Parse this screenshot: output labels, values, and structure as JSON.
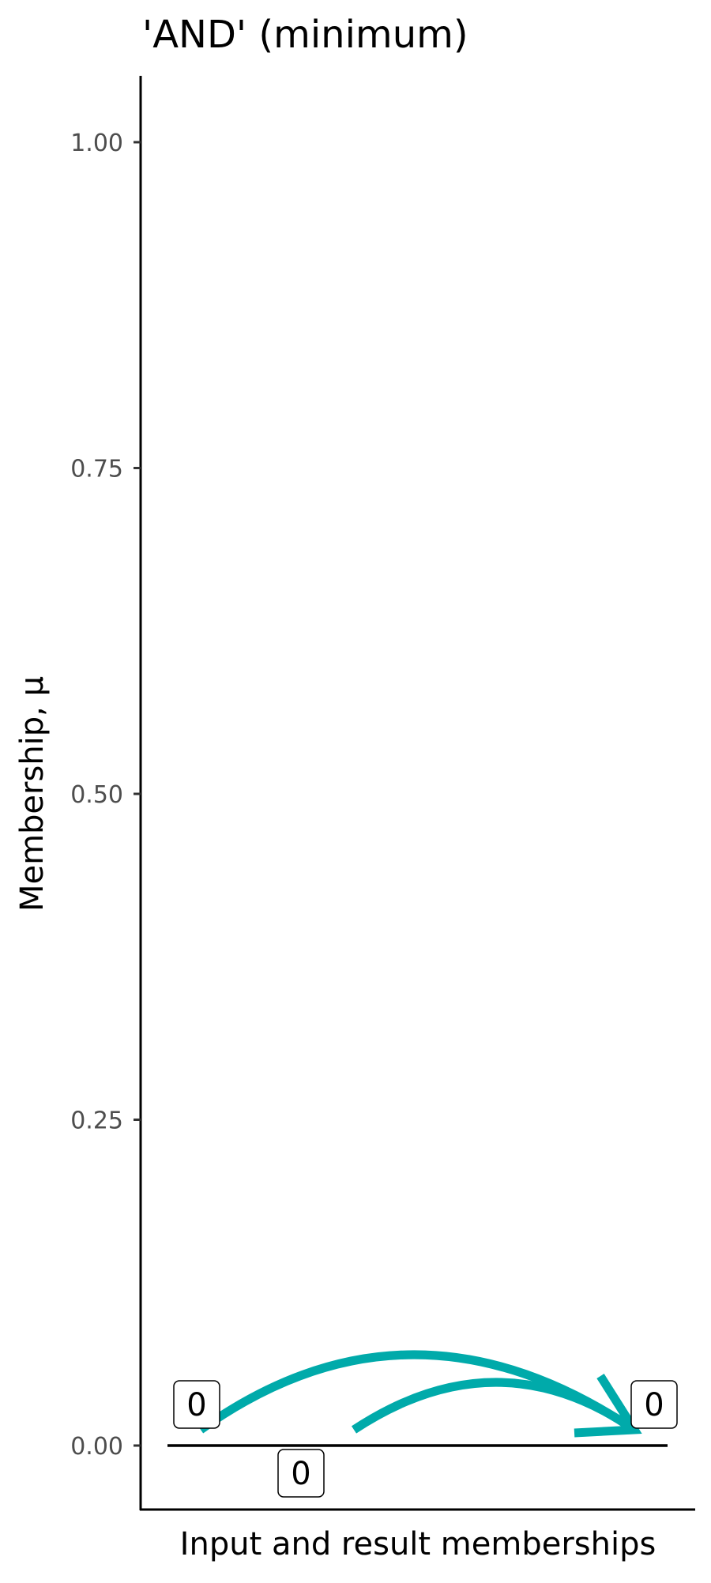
{
  "chart_data": {
    "type": "line",
    "title": "'AND' (minimum)",
    "xlabel": "Input and result memberships",
    "ylabel": "Membership, μ",
    "ylim": [
      -0.05,
      1.05
    ],
    "yticks": [
      "0.00",
      "0.25",
      "0.50",
      "0.75",
      "1.00"
    ],
    "ytick_values": [
      0,
      0.25,
      0.5,
      0.75,
      1.0
    ],
    "baseline": 0,
    "points": [
      {
        "role": "input",
        "value": 0,
        "label": "0"
      },
      {
        "role": "input",
        "value": 0,
        "label": "0"
      },
      {
        "role": "result",
        "value": 0,
        "label": "0"
      }
    ],
    "arrow_color": "#00AAAA",
    "grid": false
  }
}
